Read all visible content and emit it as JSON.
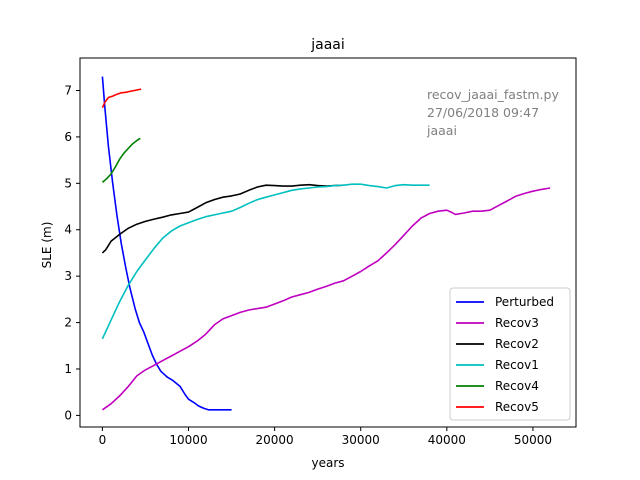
{
  "chart_data": {
    "type": "line",
    "title": "jaaai",
    "xlabel": "years",
    "ylabel": "SLE (m)",
    "xlim": [
      -2600,
      55000
    ],
    "ylim": [
      -0.25,
      7.7
    ],
    "xticks": [
      0,
      10000,
      20000,
      30000,
      40000,
      50000
    ],
    "xtick_labels": [
      "0",
      "10000",
      "20000",
      "30000",
      "40000",
      "50000"
    ],
    "yticks": [
      0,
      1,
      2,
      3,
      4,
      5,
      6,
      7
    ],
    "ytick_labels": [
      "0",
      "1",
      "2",
      "3",
      "4",
      "5",
      "6",
      "7"
    ],
    "grid": false,
    "legend_position": "lower-right",
    "annotation": [
      "recov_jaaai_fastm.py",
      "27/06/2018 09:47",
      "jaaai"
    ],
    "annotation_color": "#808080",
    "series": [
      {
        "name": "Perturbed",
        "color": "#0000ff",
        "points": [
          [
            0,
            7.3
          ],
          [
            300,
            6.6
          ],
          [
            700,
            5.8
          ],
          [
            1200,
            5.0
          ],
          [
            1700,
            4.3
          ],
          [
            2200,
            3.7
          ],
          [
            2700,
            3.2
          ],
          [
            3200,
            2.75
          ],
          [
            3800,
            2.3
          ],
          [
            4300,
            2.0
          ],
          [
            4800,
            1.8
          ],
          [
            5300,
            1.55
          ],
          [
            5800,
            1.3
          ],
          [
            6300,
            1.1
          ],
          [
            6800,
            0.95
          ],
          [
            7500,
            0.83
          ],
          [
            8200,
            0.75
          ],
          [
            9000,
            0.63
          ],
          [
            9600,
            0.45
          ],
          [
            10000,
            0.35
          ],
          [
            10600,
            0.28
          ],
          [
            11200,
            0.2
          ],
          [
            11800,
            0.15
          ],
          [
            12300,
            0.12
          ],
          [
            13000,
            0.12
          ],
          [
            15000,
            0.12
          ]
        ]
      },
      {
        "name": "Recov3",
        "color": "#bf00bf",
        "points": [
          [
            0,
            0.12
          ],
          [
            1000,
            0.25
          ],
          [
            2000,
            0.42
          ],
          [
            3000,
            0.62
          ],
          [
            4000,
            0.85
          ],
          [
            5000,
            0.98
          ],
          [
            6000,
            1.08
          ],
          [
            7000,
            1.18
          ],
          [
            8000,
            1.28
          ],
          [
            9000,
            1.38
          ],
          [
            10000,
            1.48
          ],
          [
            11000,
            1.6
          ],
          [
            12000,
            1.75
          ],
          [
            13000,
            1.95
          ],
          [
            14000,
            2.08
          ],
          [
            15000,
            2.15
          ],
          [
            16000,
            2.22
          ],
          [
            17000,
            2.27
          ],
          [
            18000,
            2.3
          ],
          [
            19000,
            2.33
          ],
          [
            20000,
            2.4
          ],
          [
            21000,
            2.47
          ],
          [
            22000,
            2.55
          ],
          [
            23000,
            2.6
          ],
          [
            24000,
            2.65
          ],
          [
            25000,
            2.72
          ],
          [
            26000,
            2.78
          ],
          [
            27000,
            2.85
          ],
          [
            28000,
            2.9
          ],
          [
            29000,
            3.0
          ],
          [
            30000,
            3.1
          ],
          [
            31000,
            3.22
          ],
          [
            32000,
            3.33
          ],
          [
            33000,
            3.5
          ],
          [
            34000,
            3.68
          ],
          [
            35000,
            3.88
          ],
          [
            36000,
            4.08
          ],
          [
            37000,
            4.25
          ],
          [
            38000,
            4.35
          ],
          [
            39000,
            4.4
          ],
          [
            40000,
            4.42
          ],
          [
            40500,
            4.38
          ],
          [
            41000,
            4.33
          ],
          [
            42000,
            4.36
          ],
          [
            43000,
            4.4
          ],
          [
            44000,
            4.4
          ],
          [
            45000,
            4.42
          ],
          [
            46000,
            4.52
          ],
          [
            47000,
            4.62
          ],
          [
            48000,
            4.72
          ],
          [
            49000,
            4.78
          ],
          [
            50000,
            4.83
          ],
          [
            51000,
            4.87
          ],
          [
            52000,
            4.9
          ]
        ]
      },
      {
        "name": "Recov2",
        "color": "#000000",
        "points": [
          [
            0,
            3.5
          ],
          [
            400,
            3.57
          ],
          [
            1000,
            3.75
          ],
          [
            2000,
            3.9
          ],
          [
            3000,
            4.03
          ],
          [
            4000,
            4.12
          ],
          [
            5000,
            4.18
          ],
          [
            6000,
            4.23
          ],
          [
            7000,
            4.27
          ],
          [
            8000,
            4.32
          ],
          [
            9000,
            4.35
          ],
          [
            10000,
            4.38
          ],
          [
            11000,
            4.48
          ],
          [
            12000,
            4.58
          ],
          [
            13000,
            4.65
          ],
          [
            14000,
            4.7
          ],
          [
            15000,
            4.73
          ],
          [
            16000,
            4.77
          ],
          [
            17000,
            4.85
          ],
          [
            18000,
            4.92
          ],
          [
            19000,
            4.96
          ],
          [
            20000,
            4.95
          ],
          [
            21000,
            4.94
          ],
          [
            22000,
            4.94
          ],
          [
            23000,
            4.96
          ],
          [
            24000,
            4.97
          ],
          [
            25000,
            4.95
          ],
          [
            26000,
            4.94
          ],
          [
            27000,
            4.95
          ],
          [
            28000,
            4.96
          ]
        ]
      },
      {
        "name": "Recov1",
        "color": "#00bfbf",
        "points": [
          [
            0,
            1.65
          ],
          [
            1000,
            2.05
          ],
          [
            2000,
            2.45
          ],
          [
            3000,
            2.8
          ],
          [
            4000,
            3.1
          ],
          [
            5000,
            3.35
          ],
          [
            6000,
            3.6
          ],
          [
            7000,
            3.82
          ],
          [
            8000,
            3.97
          ],
          [
            9000,
            4.08
          ],
          [
            10000,
            4.15
          ],
          [
            11000,
            4.22
          ],
          [
            12000,
            4.28
          ],
          [
            13000,
            4.32
          ],
          [
            14000,
            4.36
          ],
          [
            15000,
            4.4
          ],
          [
            16000,
            4.48
          ],
          [
            17000,
            4.57
          ],
          [
            18000,
            4.65
          ],
          [
            19000,
            4.7
          ],
          [
            20000,
            4.75
          ],
          [
            21000,
            4.8
          ],
          [
            22000,
            4.85
          ],
          [
            23000,
            4.88
          ],
          [
            24000,
            4.9
          ],
          [
            25000,
            4.92
          ],
          [
            26000,
            4.93
          ],
          [
            27000,
            4.95
          ],
          [
            28000,
            4.96
          ],
          [
            29000,
            4.98
          ],
          [
            30000,
            4.98
          ],
          [
            31000,
            4.95
          ],
          [
            32000,
            4.93
          ],
          [
            33000,
            4.9
          ],
          [
            34000,
            4.95
          ],
          [
            35000,
            4.97
          ],
          [
            36000,
            4.96
          ],
          [
            37000,
            4.96
          ],
          [
            38000,
            4.96
          ]
        ]
      },
      {
        "name": "Recov4",
        "color": "#008000",
        "points": [
          [
            0,
            5.02
          ],
          [
            500,
            5.1
          ],
          [
            1000,
            5.2
          ],
          [
            1500,
            5.35
          ],
          [
            2000,
            5.52
          ],
          [
            2500,
            5.65
          ],
          [
            3000,
            5.75
          ],
          [
            3500,
            5.85
          ],
          [
            4000,
            5.92
          ],
          [
            4400,
            5.97
          ]
        ]
      },
      {
        "name": "Recov5",
        "color": "#ff0000",
        "points": [
          [
            0,
            6.63
          ],
          [
            300,
            6.75
          ],
          [
            700,
            6.85
          ],
          [
            1200,
            6.88
          ],
          [
            1700,
            6.92
          ],
          [
            2200,
            6.95
          ],
          [
            2700,
            6.96
          ],
          [
            3200,
            6.98
          ],
          [
            3700,
            7.0
          ],
          [
            4200,
            7.02
          ],
          [
            4500,
            7.03
          ]
        ]
      }
    ]
  }
}
